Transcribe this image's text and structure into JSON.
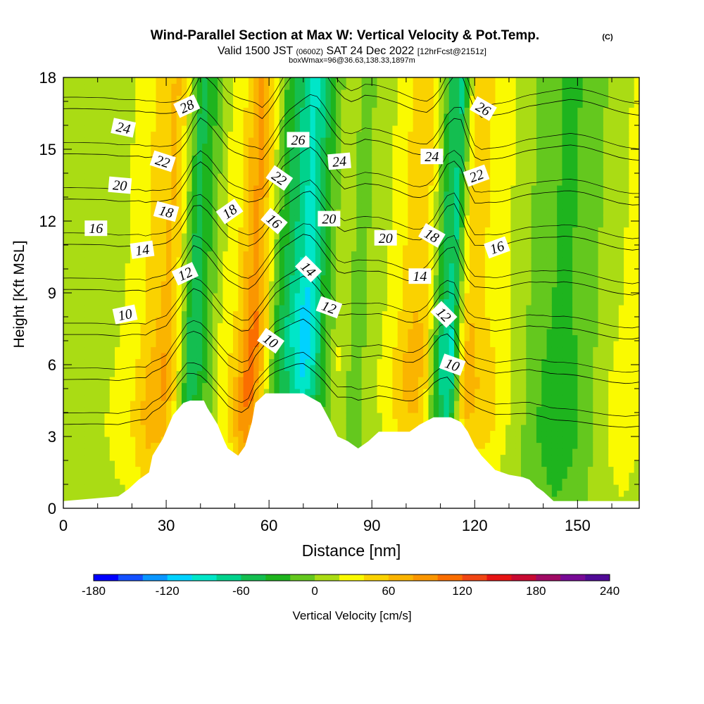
{
  "chart_data": {
    "type": "heatmap",
    "title": "Wind-Parallel Section at Max W: Vertical Velocity & Pot.Temp.",
    "title_mark": "(C)",
    "subtitle_parts": {
      "valid": "Valid 1500 JST",
      "utc": "(0600Z)",
      "date": "SAT 24 Dec 2022",
      "fcst": "[12hrFcst@2151z]"
    },
    "subtitle2": "boxWmax=96@36.63,138.33,1897m",
    "xlabel": "Distance [nm]",
    "ylabel": "Height [Kft MSL]",
    "xlim": [
      0,
      168
    ],
    "ylim": [
      0,
      18
    ],
    "xticks": [
      0,
      30,
      60,
      90,
      120,
      150
    ],
    "yticks": [
      0,
      3,
      6,
      9,
      12,
      15,
      18
    ],
    "colorbar": {
      "label": "Vertical Velocity [cm/s]",
      "min": -180,
      "max": 240,
      "step": 20,
      "ticks": [
        -180,
        -120,
        -60,
        0,
        60,
        120,
        180,
        240
      ],
      "colors": [
        "#0000ff",
        "#1450ff",
        "#0a96ff",
        "#00d2ff",
        "#00e6c8",
        "#00d28c",
        "#14be50",
        "#1eb41e",
        "#64c81e",
        "#aadc14",
        "#fafa00",
        "#fad200",
        "#fab400",
        "#fa9600",
        "#fa6e00",
        "#f04614",
        "#e61414",
        "#c80a32",
        "#a00a64",
        "#780a96",
        "#500a96"
      ]
    },
    "series_w": [
      {
        "name": "w",
        "x": [
          0,
          10,
          20,
          25,
          30,
          33,
          37,
          40,
          45,
          50,
          53,
          55,
          58,
          62,
          66,
          70,
          72,
          75,
          80,
          85,
          90,
          95,
          100,
          103,
          106,
          110,
          113,
          116,
          118,
          122,
          126,
          130,
          135,
          140,
          145,
          150,
          155,
          160,
          165,
          168
        ],
        "values": [
          5,
          10,
          30,
          60,
          80,
          40,
          -60,
          -40,
          20,
          50,
          90,
          110,
          60,
          -30,
          -70,
          -110,
          -90,
          -40,
          20,
          -10,
          10,
          30,
          60,
          70,
          40,
          -60,
          -80,
          30,
          70,
          50,
          40,
          20,
          0,
          -20,
          -30,
          -20,
          0,
          20,
          30,
          20
        ]
      }
    ],
    "theta_contours": [
      10,
      12,
      14,
      16,
      18,
      20,
      22,
      24,
      26,
      28
    ],
    "theta_labels": [
      {
        "text": "28",
        "x": 36,
        "y": 16.8,
        "rot": -25
      },
      {
        "text": "24",
        "x": 17.5,
        "y": 15.9,
        "rot": 12
      },
      {
        "text": "22",
        "x": 29,
        "y": 14.5,
        "rot": 18
      },
      {
        "text": "20",
        "x": 16.5,
        "y": 13.5,
        "rot": 5
      },
      {
        "text": "18",
        "x": 30,
        "y": 12.4,
        "rot": 15
      },
      {
        "text": "16",
        "x": 9.5,
        "y": 11.7,
        "rot": 0
      },
      {
        "text": "14",
        "x": 23,
        "y": 10.8,
        "rot": -8
      },
      {
        "text": "12",
        "x": 35.5,
        "y": 9.8,
        "rot": -25
      },
      {
        "text": "10",
        "x": 18,
        "y": 8.1,
        "rot": -12
      },
      {
        "text": "18",
        "x": 48.5,
        "y": 12.4,
        "rot": -35
      },
      {
        "text": "10",
        "x": 60.5,
        "y": 7.0,
        "rot": 35
      },
      {
        "text": "26",
        "x": 68.5,
        "y": 15.4,
        "rot": 0
      },
      {
        "text": "22",
        "x": 63,
        "y": 13.8,
        "rot": 35
      },
      {
        "text": "16",
        "x": 61.5,
        "y": 12.0,
        "rot": 40
      },
      {
        "text": "14",
        "x": 71.5,
        "y": 10.0,
        "rot": 45
      },
      {
        "text": "12",
        "x": 77.5,
        "y": 8.4,
        "rot": 20
      },
      {
        "text": "24",
        "x": 80.5,
        "y": 14.5,
        "rot": -5
      },
      {
        "text": "20",
        "x": 77.5,
        "y": 12.1,
        "rot": 0
      },
      {
        "text": "20",
        "x": 94,
        "y": 11.3,
        "rot": 0
      },
      {
        "text": "24",
        "x": 107.5,
        "y": 14.7,
        "rot": 0
      },
      {
        "text": "18",
        "x": 107.5,
        "y": 11.4,
        "rot": 30
      },
      {
        "text": "14",
        "x": 104,
        "y": 9.7,
        "rot": 0
      },
      {
        "text": "12",
        "x": 111,
        "y": 8.1,
        "rot": 45
      },
      {
        "text": "10",
        "x": 113.5,
        "y": 6.0,
        "rot": 20
      },
      {
        "text": "26",
        "x": 122.5,
        "y": 16.7,
        "rot": 30
      },
      {
        "text": "22",
        "x": 120.5,
        "y": 13.9,
        "rot": -20
      },
      {
        "text": "16",
        "x": 126.5,
        "y": 10.9,
        "rot": -20
      }
    ],
    "terrain": {
      "x": [
        0,
        16,
        19,
        22,
        25,
        26,
        29,
        32,
        35,
        37,
        39,
        41,
        42,
        45,
        47,
        48,
        51,
        53,
        55,
        56,
        59,
        62,
        66,
        70,
        75,
        78,
        80,
        83,
        86,
        89,
        92,
        95,
        98,
        101,
        104,
        108,
        110,
        113,
        116,
        118,
        120,
        122,
        126,
        130,
        134,
        136,
        138,
        140,
        143,
        168
      ],
      "height": [
        0.3,
        0.5,
        0.8,
        1.2,
        1.5,
        2.2,
        2.9,
        3.9,
        4.4,
        4.5,
        4.5,
        4.5,
        4.2,
        3.5,
        2.8,
        2.5,
        2.2,
        2.6,
        3.6,
        4.4,
        4.8,
        4.8,
        4.8,
        4.8,
        4.4,
        3.6,
        3.0,
        2.8,
        2.5,
        2.8,
        3.2,
        3.2,
        3.2,
        3.2,
        3.5,
        3.8,
        3.8,
        3.8,
        3.6,
        3.2,
        2.6,
        2.2,
        1.6,
        1.4,
        1.3,
        1.2,
        0.9,
        0.7,
        0.3,
        0.3
      ]
    }
  }
}
